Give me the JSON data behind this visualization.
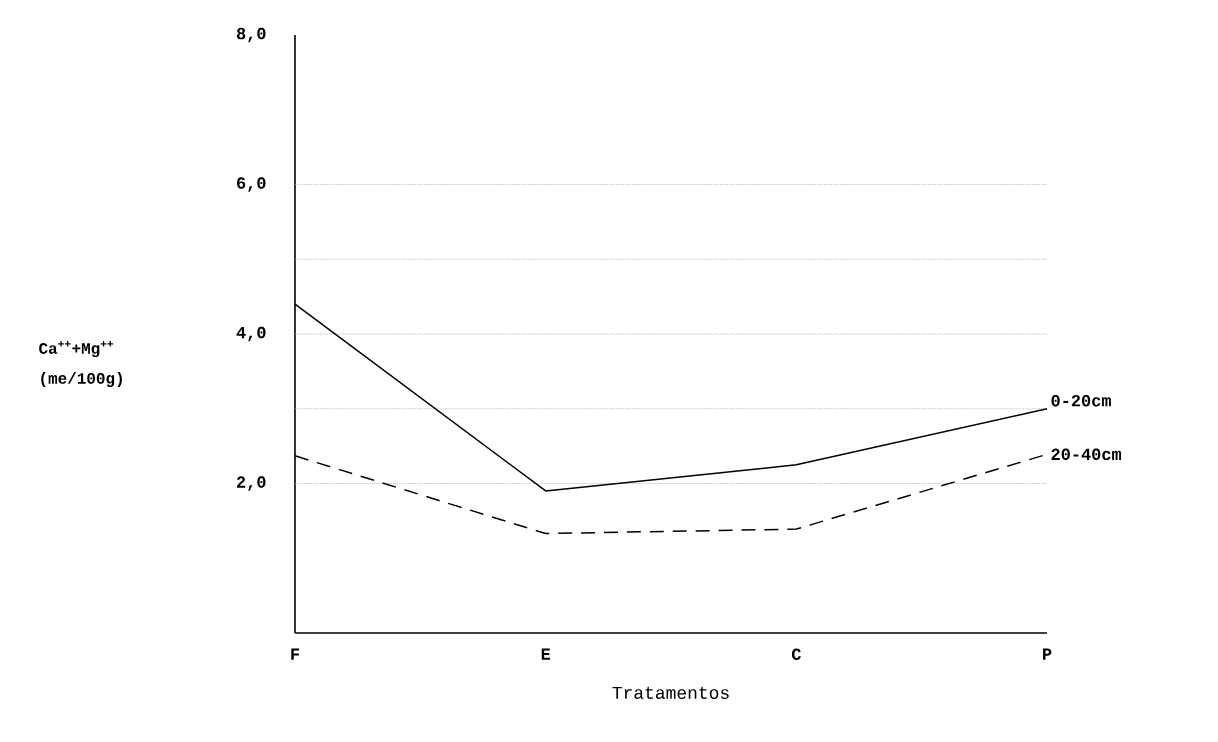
{
  "chart_data": {
    "type": "line",
    "xlabel": "Tratamentos",
    "ylabel": "Ca$^{++}$+Mg$^{++}$ (me/100g)",
    "categories": [
      "F",
      "E",
      "C",
      "P"
    ],
    "series": [
      {
        "name": "0-20cm",
        "color": "#000000",
        "line_style": "solid",
        "values": [
          4.4,
          1.9,
          2.25,
          3.0
        ]
      },
      {
        "name": "20-40cm",
        "color": "#000000",
        "line_style": "dashed",
        "values": [
          2.37,
          1.33,
          1.39,
          2.39
        ]
      }
    ],
    "ylim": [
      0,
      8
    ],
    "yticks": [
      {
        "value": 2,
        "label": "2,0"
      },
      {
        "value": 3,
        "label": null
      },
      {
        "value": 4,
        "label": "4,0"
      },
      {
        "value": 5,
        "label": null
      },
      {
        "value": 6,
        "label": "6,0"
      },
      {
        "value": 8,
        "label": "8,0"
      }
    ],
    "grid": "y",
    "marker": "none"
  }
}
